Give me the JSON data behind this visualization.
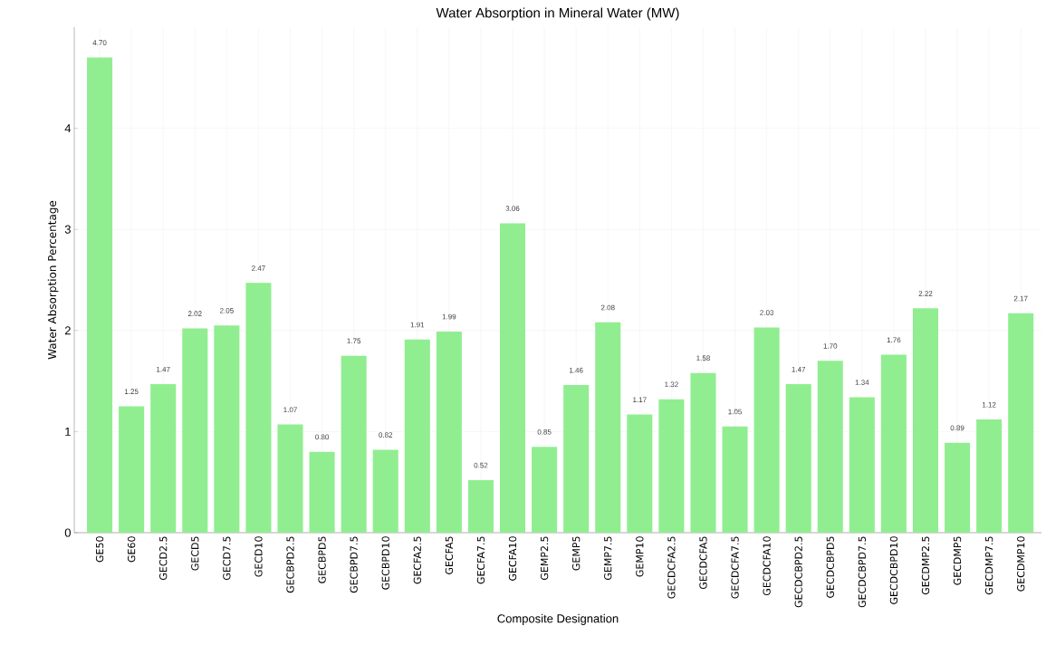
{
  "chart_data": {
    "type": "bar",
    "title": "Water Absorption in Mineral Water (MW)",
    "xlabel": "Composite Designation",
    "ylabel": "Water Absorption Percentage",
    "categories": [
      "GE50",
      "GE60",
      "GECD2.5",
      "GECD5",
      "GECD7.5",
      "GECD10",
      "GECBPD2.5",
      "GECBPD5",
      "GECBPD7.5",
      "GECBPD10",
      "GECFA2.5",
      "GECFA5",
      "GECFA7.5",
      "GECFA10",
      "GEMP2.5",
      "GEMP5",
      "GEMP7.5",
      "GEMP10",
      "GECDCFA2.5",
      "GECDCFA5",
      "GECDCFA7.5",
      "GECDCFA10",
      "GECDCBPD2.5",
      "GECDCBPD5",
      "GECDCBPD7.5",
      "GECDCBPD10",
      "GECDMP2.5",
      "GECDMP5",
      "GECDMP7.5",
      "GECDMP10"
    ],
    "values": [
      4.7,
      1.25,
      1.47,
      2.02,
      2.05,
      2.47,
      1.07,
      0.8,
      1.75,
      0.82,
      1.91,
      1.99,
      0.52,
      3.06,
      0.85,
      1.46,
      2.08,
      1.17,
      1.32,
      1.58,
      1.05,
      2.03,
      1.47,
      1.7,
      1.34,
      1.76,
      2.22,
      0.89,
      1.12,
      2.17
    ],
    "value_labels": [
      "4.70",
      "1.25",
      "1.47",
      "2.02",
      "2.05",
      "2.47",
      "1.07",
      "0.80",
      "1.75",
      "0.82",
      "1.91",
      "1.99",
      "0.52",
      "3.06",
      "0.85",
      "1.46",
      "2.08",
      "1.17",
      "1.32",
      "1.58",
      "1.05",
      "2.03",
      "1.47",
      "1.70",
      "1.34",
      "1.76",
      "2.22",
      "0.89",
      "1.12",
      "2.17"
    ],
    "color": "#90ee90",
    "ylim": [
      0,
      5.0
    ],
    "yticks": [
      0,
      1,
      2,
      3,
      4
    ],
    "grid": true
  }
}
